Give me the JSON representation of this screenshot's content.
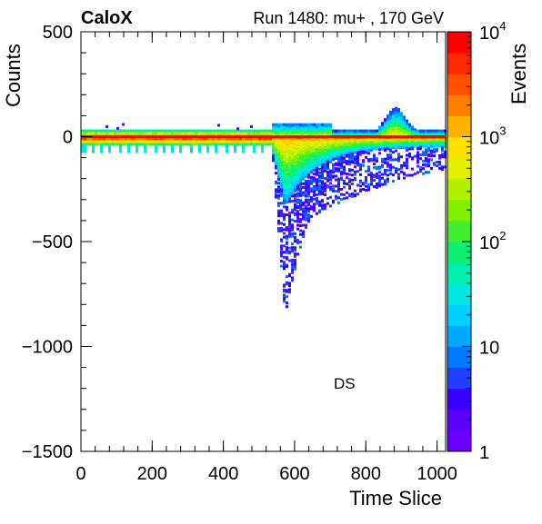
{
  "header": {
    "logo": "CaloX",
    "run_title": "Run 1480: mu+ , 170 GeV"
  },
  "chart_data": {
    "type": "heatmap",
    "xlabel": "Time Slice",
    "ylabel": "Counts",
    "zlabel": "Events",
    "xlim": [
      0,
      1024
    ],
    "ylim": [
      -1500,
      500
    ],
    "zlim": [
      1,
      10000
    ],
    "z_scale": "log",
    "x_ticks": [
      "0",
      "200",
      "400",
      "600",
      "800",
      "1000"
    ],
    "y_ticks": [
      "500",
      "0",
      "−500",
      "−1000",
      "−1500"
    ],
    "z_ticks": [
      {
        "base": "10",
        "exp": "4",
        "value": 10000
      },
      {
        "base": "10",
        "exp": "3",
        "value": 1000
      },
      {
        "base": "10",
        "exp": "2",
        "value": 100
      },
      {
        "base": "10",
        "exp": "",
        "value": 10
      },
      {
        "base": "1",
        "exp": "",
        "value": 1
      }
    ],
    "annotation": "DS",
    "reference_line": {
      "y": 0,
      "color": "#ff0000"
    },
    "colors": {
      "palette": [
        "#6a00ff",
        "#5a00ff",
        "#3a00ff",
        "#2040ff",
        "#0078ff",
        "#00a8ff",
        "#00d0ff",
        "#00e8e0",
        "#00f0b0",
        "#10f070",
        "#40f030",
        "#80f000",
        "#b0f000",
        "#e0f000",
        "#ffe000",
        "#ffb000",
        "#ff8000",
        "#ff5000",
        "#ff2800",
        "#ff0000"
      ]
    },
    "features": [
      {
        "name": "baseline",
        "x": [
          0,
          1024
        ],
        "y": 0
      },
      {
        "name": "pulse",
        "x_start": 530,
        "x_peak": 570,
        "min_counts": -850
      },
      {
        "name": "secondary bump",
        "x_center": 880,
        "max_counts": 200
      }
    ]
  }
}
